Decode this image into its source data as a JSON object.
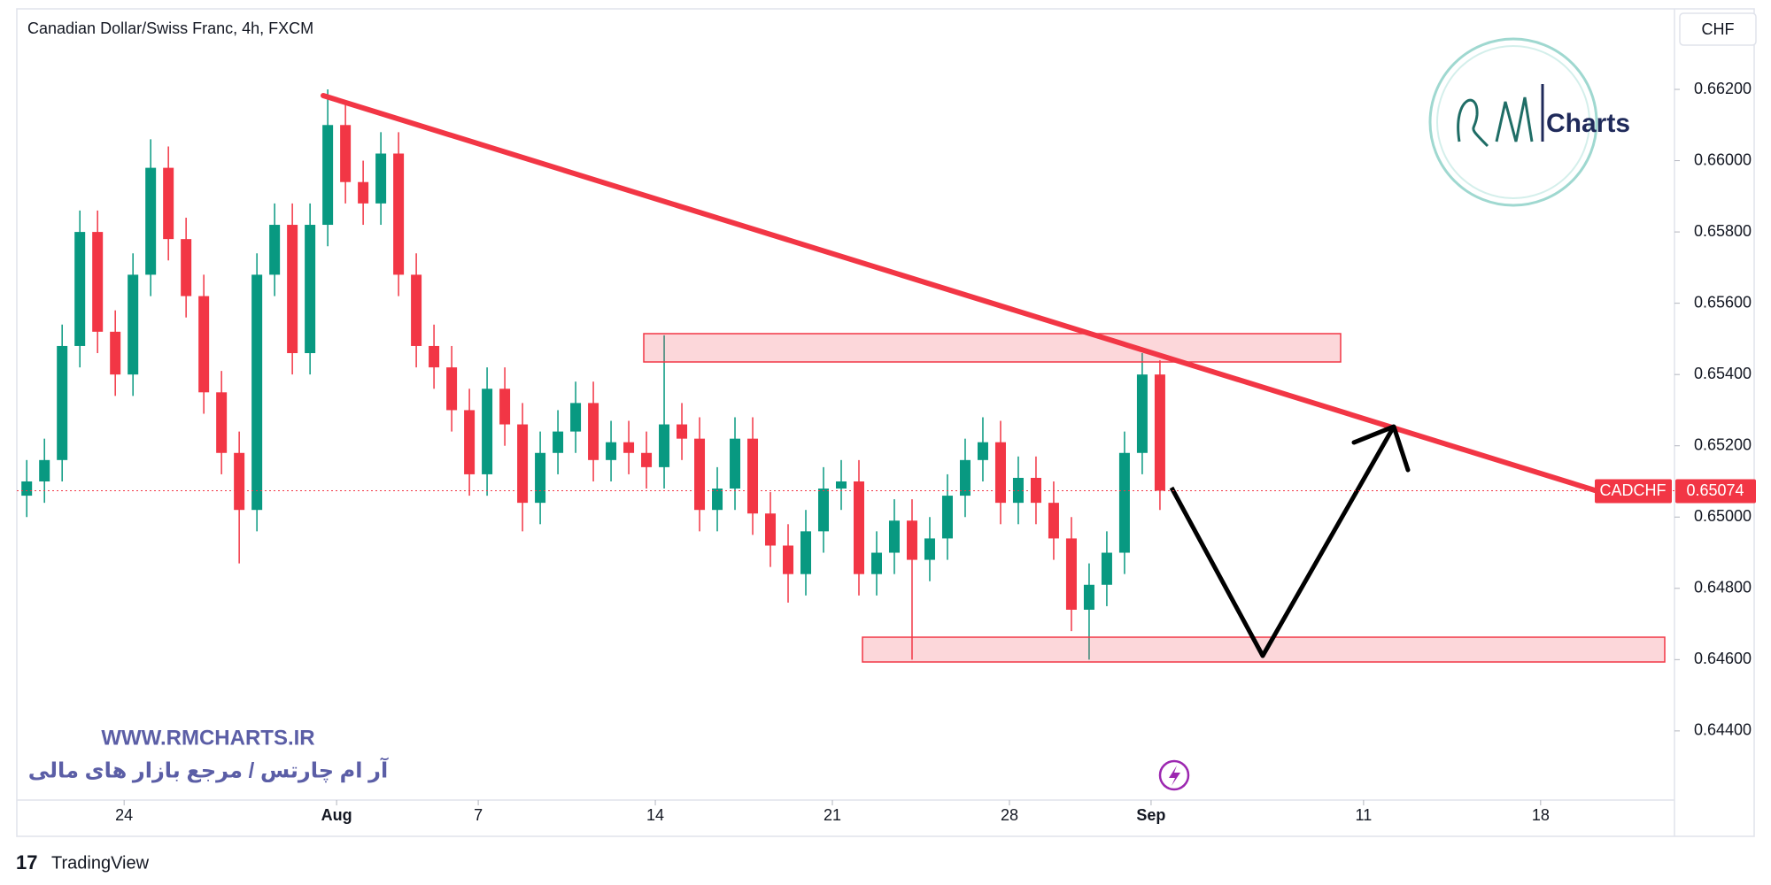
{
  "chart_data": {
    "type": "candlestick",
    "title": "Canadian Dollar/Swiss Franc, 4h, FXCM",
    "currency": "CHF",
    "symbol": "CADCHF",
    "last_price": 0.65074,
    "watermark": "WWW.RMCHARTS.IR",
    "tagline": "آر ام چارتس / مرجع بازار های مالی",
    "logo_text": "Charts",
    "footer": "TradingView",
    "up_color": "#089981",
    "down_color": "#f23645",
    "grid": false,
    "xlim": [
      -3.03,
      43.78
    ],
    "ylim": [
      0.64206,
      0.66426
    ],
    "xticks": [
      {
        "value": 0,
        "label": "24"
      },
      {
        "value": 6,
        "label": "Aug"
      },
      {
        "value": 10,
        "label": "7"
      },
      {
        "value": 15,
        "label": "14"
      },
      {
        "value": 20,
        "label": "21"
      },
      {
        "value": 25,
        "label": "28"
      },
      {
        "value": 29,
        "label": "Sep"
      },
      {
        "value": 35,
        "label": "11"
      },
      {
        "value": 40,
        "label": "18"
      }
    ],
    "yticks": [
      {
        "value": 0.644,
        "label": "0.64400"
      },
      {
        "value": 0.646,
        "label": "0.64600"
      },
      {
        "value": 0.648,
        "label": "0.64800"
      },
      {
        "value": 0.65,
        "label": "0.65000"
      },
      {
        "value": 0.652,
        "label": "0.65200"
      },
      {
        "value": 0.654,
        "label": "0.65400"
      },
      {
        "value": 0.656,
        "label": "0.65600"
      },
      {
        "value": 0.658,
        "label": "0.65800"
      },
      {
        "value": 0.66,
        "label": "0.66000"
      },
      {
        "value": 0.662,
        "label": "0.66200"
      }
    ],
    "x": [
      -2.75,
      -2.25,
      -1.75,
      -1.25,
      -0.75,
      -0.25,
      0.25,
      0.75,
      1.25,
      1.75,
      2.25,
      2.75,
      3.25,
      3.75,
      4.25,
      4.75,
      5.25,
      5.75,
      6.25,
      6.75,
      7.25,
      7.75,
      8.25,
      8.75,
      9.25,
      9.75,
      10.25,
      10.75,
      11.25,
      11.75,
      12.25,
      12.75,
      13.25,
      13.75,
      14.25,
      14.75,
      15.25,
      15.75,
      16.25,
      16.75,
      17.25,
      17.75,
      18.25,
      18.75,
      19.25,
      19.75,
      20.25,
      20.75,
      21.25,
      21.75,
      22.25,
      22.75,
      23.25,
      23.75,
      24.25,
      24.75,
      25.25,
      25.75,
      26.25,
      26.75,
      27.25,
      27.75,
      28.25,
      28.75,
      29.25
    ],
    "open": [
      0.6506,
      0.651,
      0.6516,
      0.6548,
      0.658,
      0.6552,
      0.654,
      0.6568,
      0.6598,
      0.6578,
      0.6562,
      0.6535,
      0.6518,
      0.6502,
      0.6568,
      0.6582,
      0.6546,
      0.6582,
      0.661,
      0.6594,
      0.6588,
      0.6602,
      0.6568,
      0.6548,
      0.6542,
      0.653,
      0.6512,
      0.6536,
      0.6526,
      0.6504,
      0.6518,
      0.6524,
      0.6532,
      0.6516,
      0.6521,
      0.6518,
      0.6514,
      0.6526,
      0.6522,
      0.6502,
      0.6508,
      0.6522,
      0.6501,
      0.6492,
      0.6484,
      0.6496,
      0.6508,
      0.651,
      0.6484,
      0.649,
      0.6499,
      0.6488,
      0.6494,
      0.6506,
      0.6516,
      0.6521,
      0.6504,
      0.6511,
      0.6504,
      0.6494,
      0.6474,
      0.6481,
      0.649,
      0.6518,
      0.654
    ],
    "high": [
      0.6516,
      0.6522,
      0.6554,
      0.6586,
      0.6586,
      0.6558,
      0.6574,
      0.6606,
      0.6604,
      0.6584,
      0.6568,
      0.6541,
      0.6524,
      0.6574,
      0.6588,
      0.6588,
      0.6588,
      0.662,
      0.6616,
      0.66,
      0.6608,
      0.6608,
      0.6574,
      0.6554,
      0.6548,
      0.6536,
      0.6542,
      0.6542,
      0.6532,
      0.6524,
      0.653,
      0.6538,
      0.6538,
      0.6527,
      0.6527,
      0.6524,
      0.6551,
      0.6532,
      0.6528,
      0.6514,
      0.6528,
      0.6528,
      0.6507,
      0.6498,
      0.6502,
      0.6514,
      0.6516,
      0.6516,
      0.6496,
      0.6505,
      0.6505,
      0.65,
      0.6512,
      0.6522,
      0.6528,
      0.6527,
      0.6517,
      0.6517,
      0.651,
      0.65,
      0.6487,
      0.6496,
      0.6524,
      0.6546,
      0.6544
    ],
    "low": [
      0.65,
      0.6504,
      0.651,
      0.6542,
      0.6546,
      0.6534,
      0.6534,
      0.6562,
      0.6572,
      0.6556,
      0.6529,
      0.6512,
      0.6487,
      0.6496,
      0.6562,
      0.654,
      0.654,
      0.6576,
      0.6588,
      0.6582,
      0.6582,
      0.6562,
      0.6542,
      0.6536,
      0.6524,
      0.6506,
      0.6506,
      0.652,
      0.6496,
      0.6498,
      0.6512,
      0.6518,
      0.651,
      0.651,
      0.6512,
      0.6508,
      0.6508,
      0.6516,
      0.6496,
      0.6496,
      0.6502,
      0.6495,
      0.6486,
      0.6476,
      0.6478,
      0.649,
      0.6502,
      0.6478,
      0.6478,
      0.6484,
      0.646,
      0.6482,
      0.6488,
      0.65,
      0.651,
      0.6498,
      0.6498,
      0.6498,
      0.6488,
      0.6468,
      0.646,
      0.6475,
      0.6484,
      0.6512,
      0.6502
    ],
    "close": [
      0.651,
      0.6516,
      0.6548,
      0.658,
      0.6552,
      0.654,
      0.6568,
      0.6598,
      0.6578,
      0.6562,
      0.6535,
      0.6518,
      0.6502,
      0.6568,
      0.6582,
      0.6546,
      0.6582,
      0.661,
      0.6594,
      0.6588,
      0.6602,
      0.6568,
      0.6548,
      0.6542,
      0.653,
      0.6512,
      0.6536,
      0.6526,
      0.6504,
      0.6518,
      0.6524,
      0.6532,
      0.6516,
      0.6521,
      0.6518,
      0.6514,
      0.6526,
      0.6522,
      0.6502,
      0.6508,
      0.6522,
      0.6501,
      0.6492,
      0.6484,
      0.6496,
      0.6508,
      0.651,
      0.6484,
      0.649,
      0.6499,
      0.6488,
      0.6494,
      0.6506,
      0.6516,
      0.6521,
      0.6504,
      0.6511,
      0.6504,
      0.6494,
      0.6474,
      0.6481,
      0.649,
      0.6518,
      0.654,
      0.65074
    ]
  }
}
